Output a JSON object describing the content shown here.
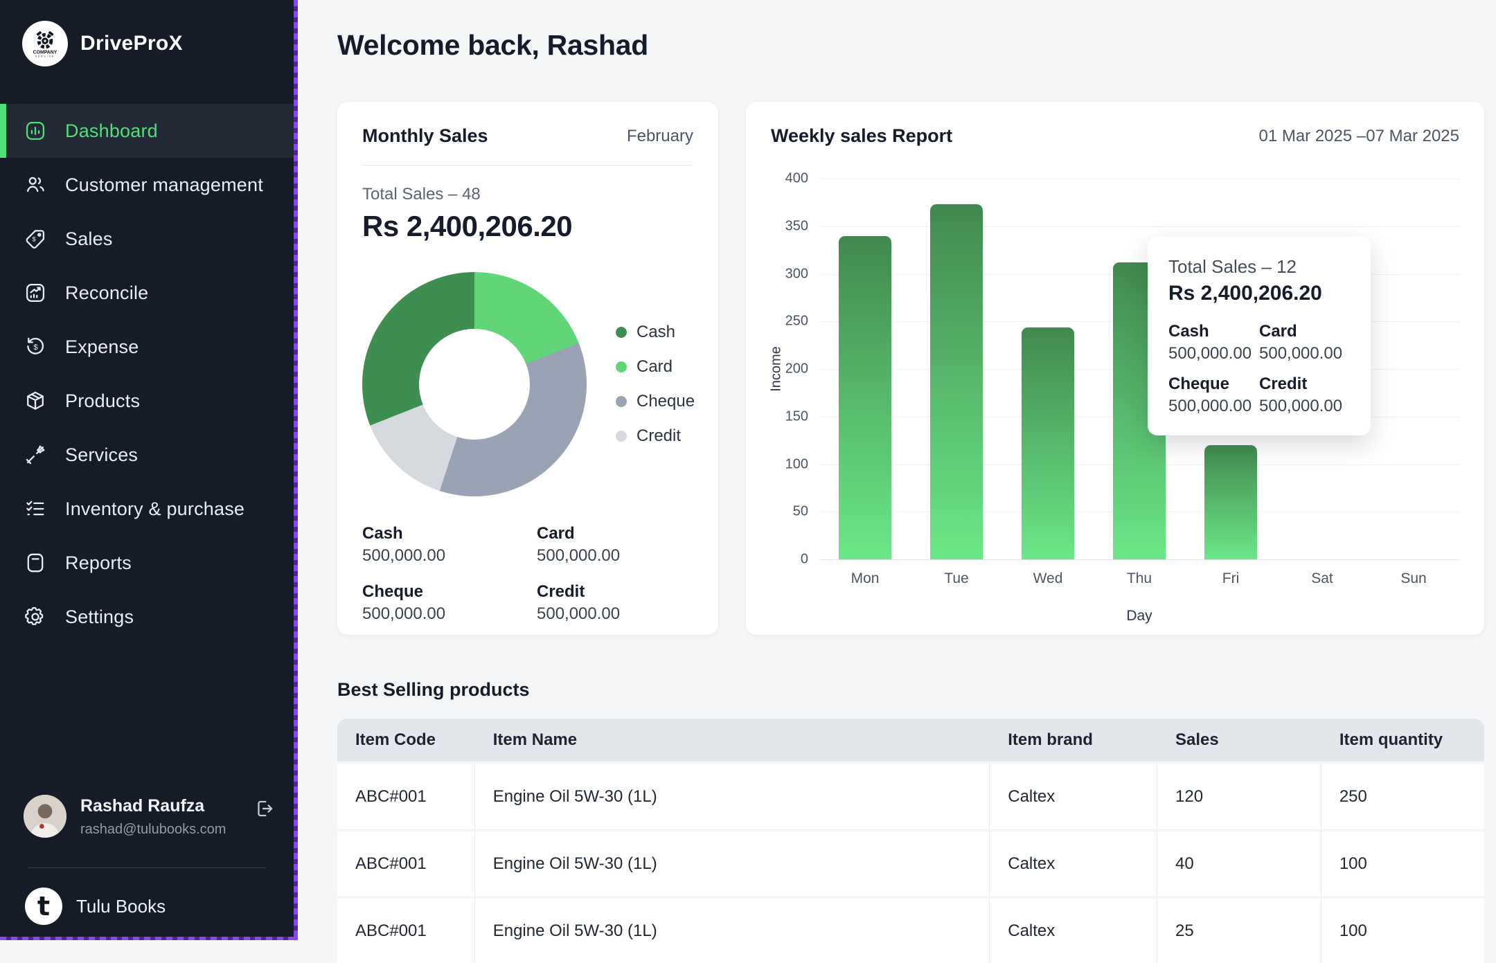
{
  "colors": {
    "accent_green": "#50df78",
    "sidebar_bg": "#151c28",
    "sidebar_active_bg": "#222a36",
    "selection_border": "#8a46f6",
    "bar_gradient_top": "#41894f",
    "bar_gradient_bottom": "#6ce787"
  },
  "sidebar": {
    "brand": {
      "name": "DriveProX",
      "logo_text": "COMPANY"
    },
    "items": [
      {
        "label": "Dashboard",
        "icon": "dashboard",
        "active": true
      },
      {
        "label": "Customer management",
        "icon": "customers",
        "active": false
      },
      {
        "label": "Sales",
        "icon": "sales-tag",
        "active": false
      },
      {
        "label": "Reconcile",
        "icon": "reconcile",
        "active": false
      },
      {
        "label": "Expense",
        "icon": "expense",
        "active": false
      },
      {
        "label": "Products",
        "icon": "products",
        "active": false
      },
      {
        "label": "Services",
        "icon": "services",
        "active": false
      },
      {
        "label": "Inventory & purchase",
        "icon": "inventory",
        "active": false
      },
      {
        "label": "Reports",
        "icon": "reports",
        "active": false
      },
      {
        "label": "Settings",
        "icon": "settings",
        "active": false
      }
    ],
    "user": {
      "name": "Rashad Raufza",
      "email": "rashad@tulubooks.com"
    },
    "footer_brand": {
      "label": "Tulu Books",
      "logo_letter": "t"
    }
  },
  "header": {
    "title": "Welcome back, Rashad"
  },
  "monthly_sales": {
    "title": "Monthly Sales",
    "period": "February",
    "total_label": "Total Sales – 48",
    "total_amount": "Rs 2,400,206.20",
    "chart_data": {
      "type": "donut",
      "segments_clockwise_from_top": [
        {
          "label": "Card",
          "color": "#61d678",
          "percent": 19,
          "value": "500,000.00"
        },
        {
          "label": "Cheque",
          "color": "#9aa3b3",
          "percent": 36,
          "value": "500,000.00"
        },
        {
          "label": "Credit",
          "color": "#d6dade",
          "percent": 14,
          "value": "500,000.00"
        },
        {
          "label": "Cash",
          "color": "#3e8e50",
          "percent": 31,
          "value": "500,000.00"
        }
      ],
      "legend": [
        {
          "label": "Cash",
          "color": "#3e8e50"
        },
        {
          "label": "Card",
          "color": "#61d678"
        },
        {
          "label": "Cheque",
          "color": "#9aa3b3"
        },
        {
          "label": "Credit",
          "color": "#d6dade"
        }
      ]
    },
    "breakdown": [
      {
        "label": "Cash",
        "value": "500,000.00"
      },
      {
        "label": "Card",
        "value": "500,000.00"
      },
      {
        "label": "Cheque",
        "value": "500,000.00"
      },
      {
        "label": "Credit",
        "value": "500,000.00"
      }
    ]
  },
  "weekly_report": {
    "title": "Weekly sales Report",
    "date_range": "01 Mar 2025 –07 Mar 2025",
    "chart_data": {
      "type": "bar",
      "categories": [
        "Mon",
        "Tue",
        "Wed",
        "Thu",
        "Fri",
        "Sat",
        "Sun"
      ],
      "series": [
        {
          "name": "Income",
          "values": [
            340,
            373,
            244,
            312,
            120,
            0,
            0
          ]
        }
      ],
      "xlabel": "Day",
      "ylabel": "Income",
      "ylim": [
        0,
        400
      ],
      "tick_step": 50,
      "grid": true
    },
    "tooltip": {
      "title": "Total Sales – 12",
      "amount": "Rs 2,400,206.20",
      "items": [
        {
          "label": "Cash",
          "value": "500,000.00"
        },
        {
          "label": "Card",
          "value": "500,000.00"
        },
        {
          "label": "Cheque",
          "value": "500,000.00"
        },
        {
          "label": "Credit",
          "value": "500,000.00"
        }
      ]
    }
  },
  "best_selling": {
    "title": "Best Selling products",
    "columns": [
      "Item Code",
      "Item Name",
      "Item brand",
      "Sales",
      "Item quantity"
    ],
    "rows": [
      [
        "ABC#001",
        "Engine Oil 5W-30 (1L)",
        "Caltex",
        "120",
        "250"
      ],
      [
        "ABC#001",
        "Engine Oil 5W-30 (1L)",
        "Caltex",
        "40",
        "100"
      ],
      [
        "ABC#001",
        "Engine Oil 5W-30 (1L)",
        "Caltex",
        "25",
        "100"
      ]
    ]
  }
}
